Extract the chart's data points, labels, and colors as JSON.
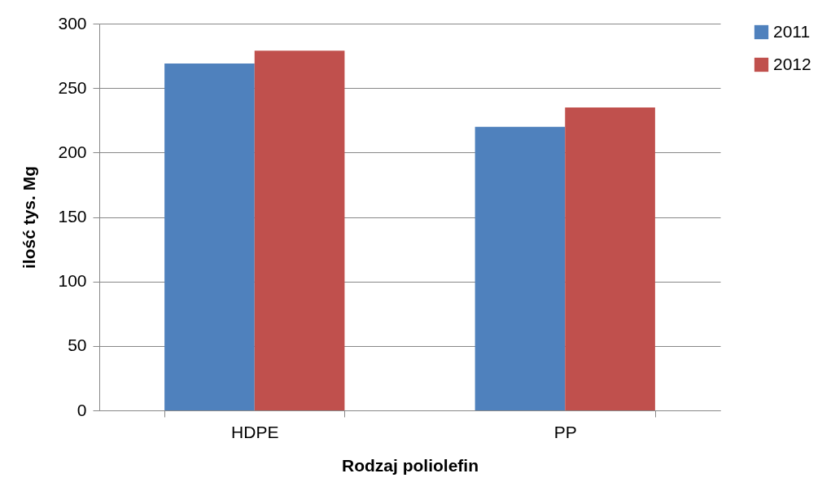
{
  "chart_data": {
    "type": "bar",
    "xlabel": "Rodzaj poliolefin",
    "ylabel": "ilość tys. Mg",
    "categories": [
      "HDPE",
      "PP"
    ],
    "series": [
      {
        "name": "2011",
        "color": "#4f81bd",
        "values": [
          269,
          220
        ]
      },
      {
        "name": "2012",
        "color": "#c0504d",
        "values": [
          279,
          235
        ]
      }
    ],
    "ylim": [
      0,
      300
    ],
    "yticks": [
      0,
      50,
      100,
      150,
      200,
      250,
      300
    ],
    "grid": "y",
    "legend": "right"
  }
}
